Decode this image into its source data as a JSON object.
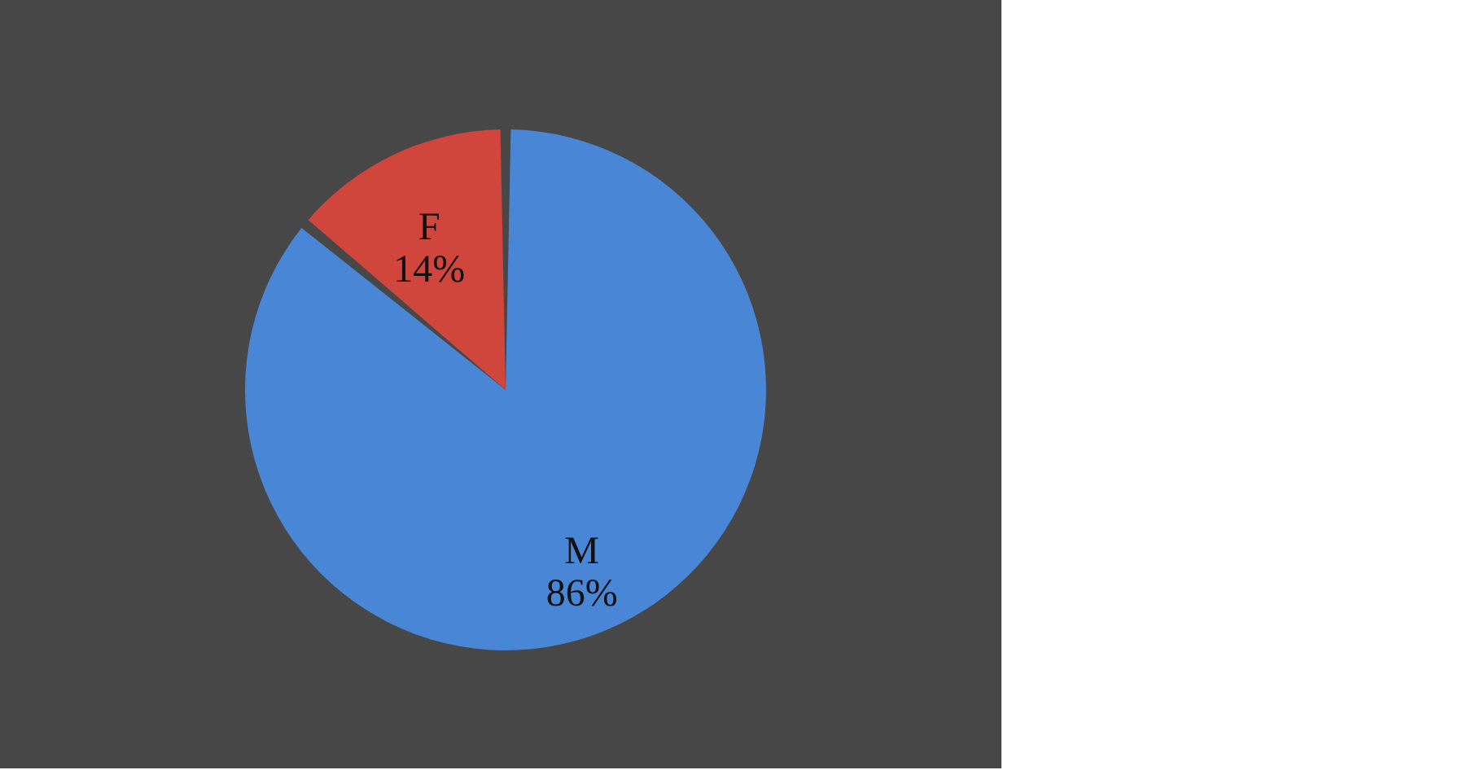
{
  "chart_data": {
    "type": "pie",
    "categories": [
      "M",
      "F"
    ],
    "values": [
      86,
      14
    ],
    "colors": [
      "#4a86d6",
      "#d0453c"
    ],
    "value_labels": [
      "86%",
      "14%"
    ],
    "legend": false
  }
}
